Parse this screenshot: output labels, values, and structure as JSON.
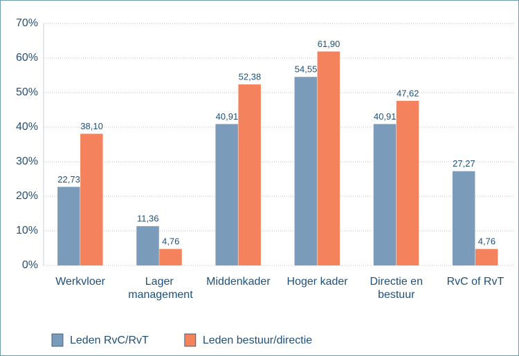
{
  "chart_data": {
    "type": "bar",
    "categories": [
      "Werkvloer",
      "Lager management",
      "Middenkader",
      "Hoger kader",
      "Directie en bestuur",
      "RvC of RvT"
    ],
    "series": [
      {
        "name": "Leden RvC/RvT",
        "color": "#7a9cba",
        "values": [
          22.73,
          11.36,
          40.91,
          54.55,
          40.91,
          27.27
        ],
        "value_labels": [
          "22,73",
          "11,36",
          "40,91",
          "54,55",
          "40,91",
          "27,27"
        ]
      },
      {
        "name": "Leden bestuur/directie",
        "color": "#f4825c",
        "values": [
          38.1,
          4.76,
          52.38,
          61.9,
          47.62,
          4.76
        ],
        "value_labels": [
          "38,10",
          "4,76",
          "52,38",
          "61,90",
          "47,62",
          "4,76"
        ]
      }
    ],
    "ylim": [
      0,
      70
    ],
    "yticks": [
      {
        "value": 0,
        "label": "0%"
      },
      {
        "value": 10,
        "label": "10%"
      },
      {
        "value": 20,
        "label": "20%"
      },
      {
        "value": 30,
        "label": "30%"
      },
      {
        "value": 40,
        "label": "40%"
      },
      {
        "value": 50,
        "label": "50%"
      },
      {
        "value": 60,
        "label": "60%"
      },
      {
        "value": 70,
        "label": "70%"
      }
    ],
    "grid": true,
    "legend": "bottom"
  }
}
